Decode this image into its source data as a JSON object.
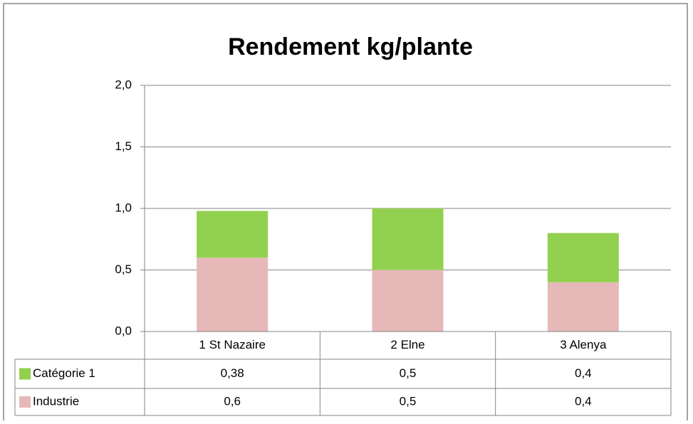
{
  "chart_data": {
    "type": "stacked-bar",
    "title": "Rendement kg/plante",
    "categories": [
      "1 St Nazaire",
      "2 Elne",
      "3 Alenya"
    ],
    "series": [
      {
        "name": "Catégorie 1",
        "color": "#92d050",
        "values": [
          0.38,
          0.5,
          0.4
        ],
        "value_labels": [
          "0,38",
          "0,5",
          "0,4"
        ]
      },
      {
        "name": "Industrie",
        "color": "#e6b9b8",
        "values": [
          0.6,
          0.5,
          0.4
        ],
        "value_labels": [
          "0,6",
          "0,5",
          "0,4"
        ]
      }
    ],
    "ylim": [
      0,
      2
    ],
    "yticks": [
      {
        "value": 0,
        "label": "0,0"
      },
      {
        "value": 0.5,
        "label": "0,5"
      },
      {
        "value": 1,
        "label": "1,0"
      },
      {
        "value": 1.5,
        "label": "1,5"
      },
      {
        "value": 2,
        "label": "2,0"
      }
    ],
    "grid": true
  }
}
